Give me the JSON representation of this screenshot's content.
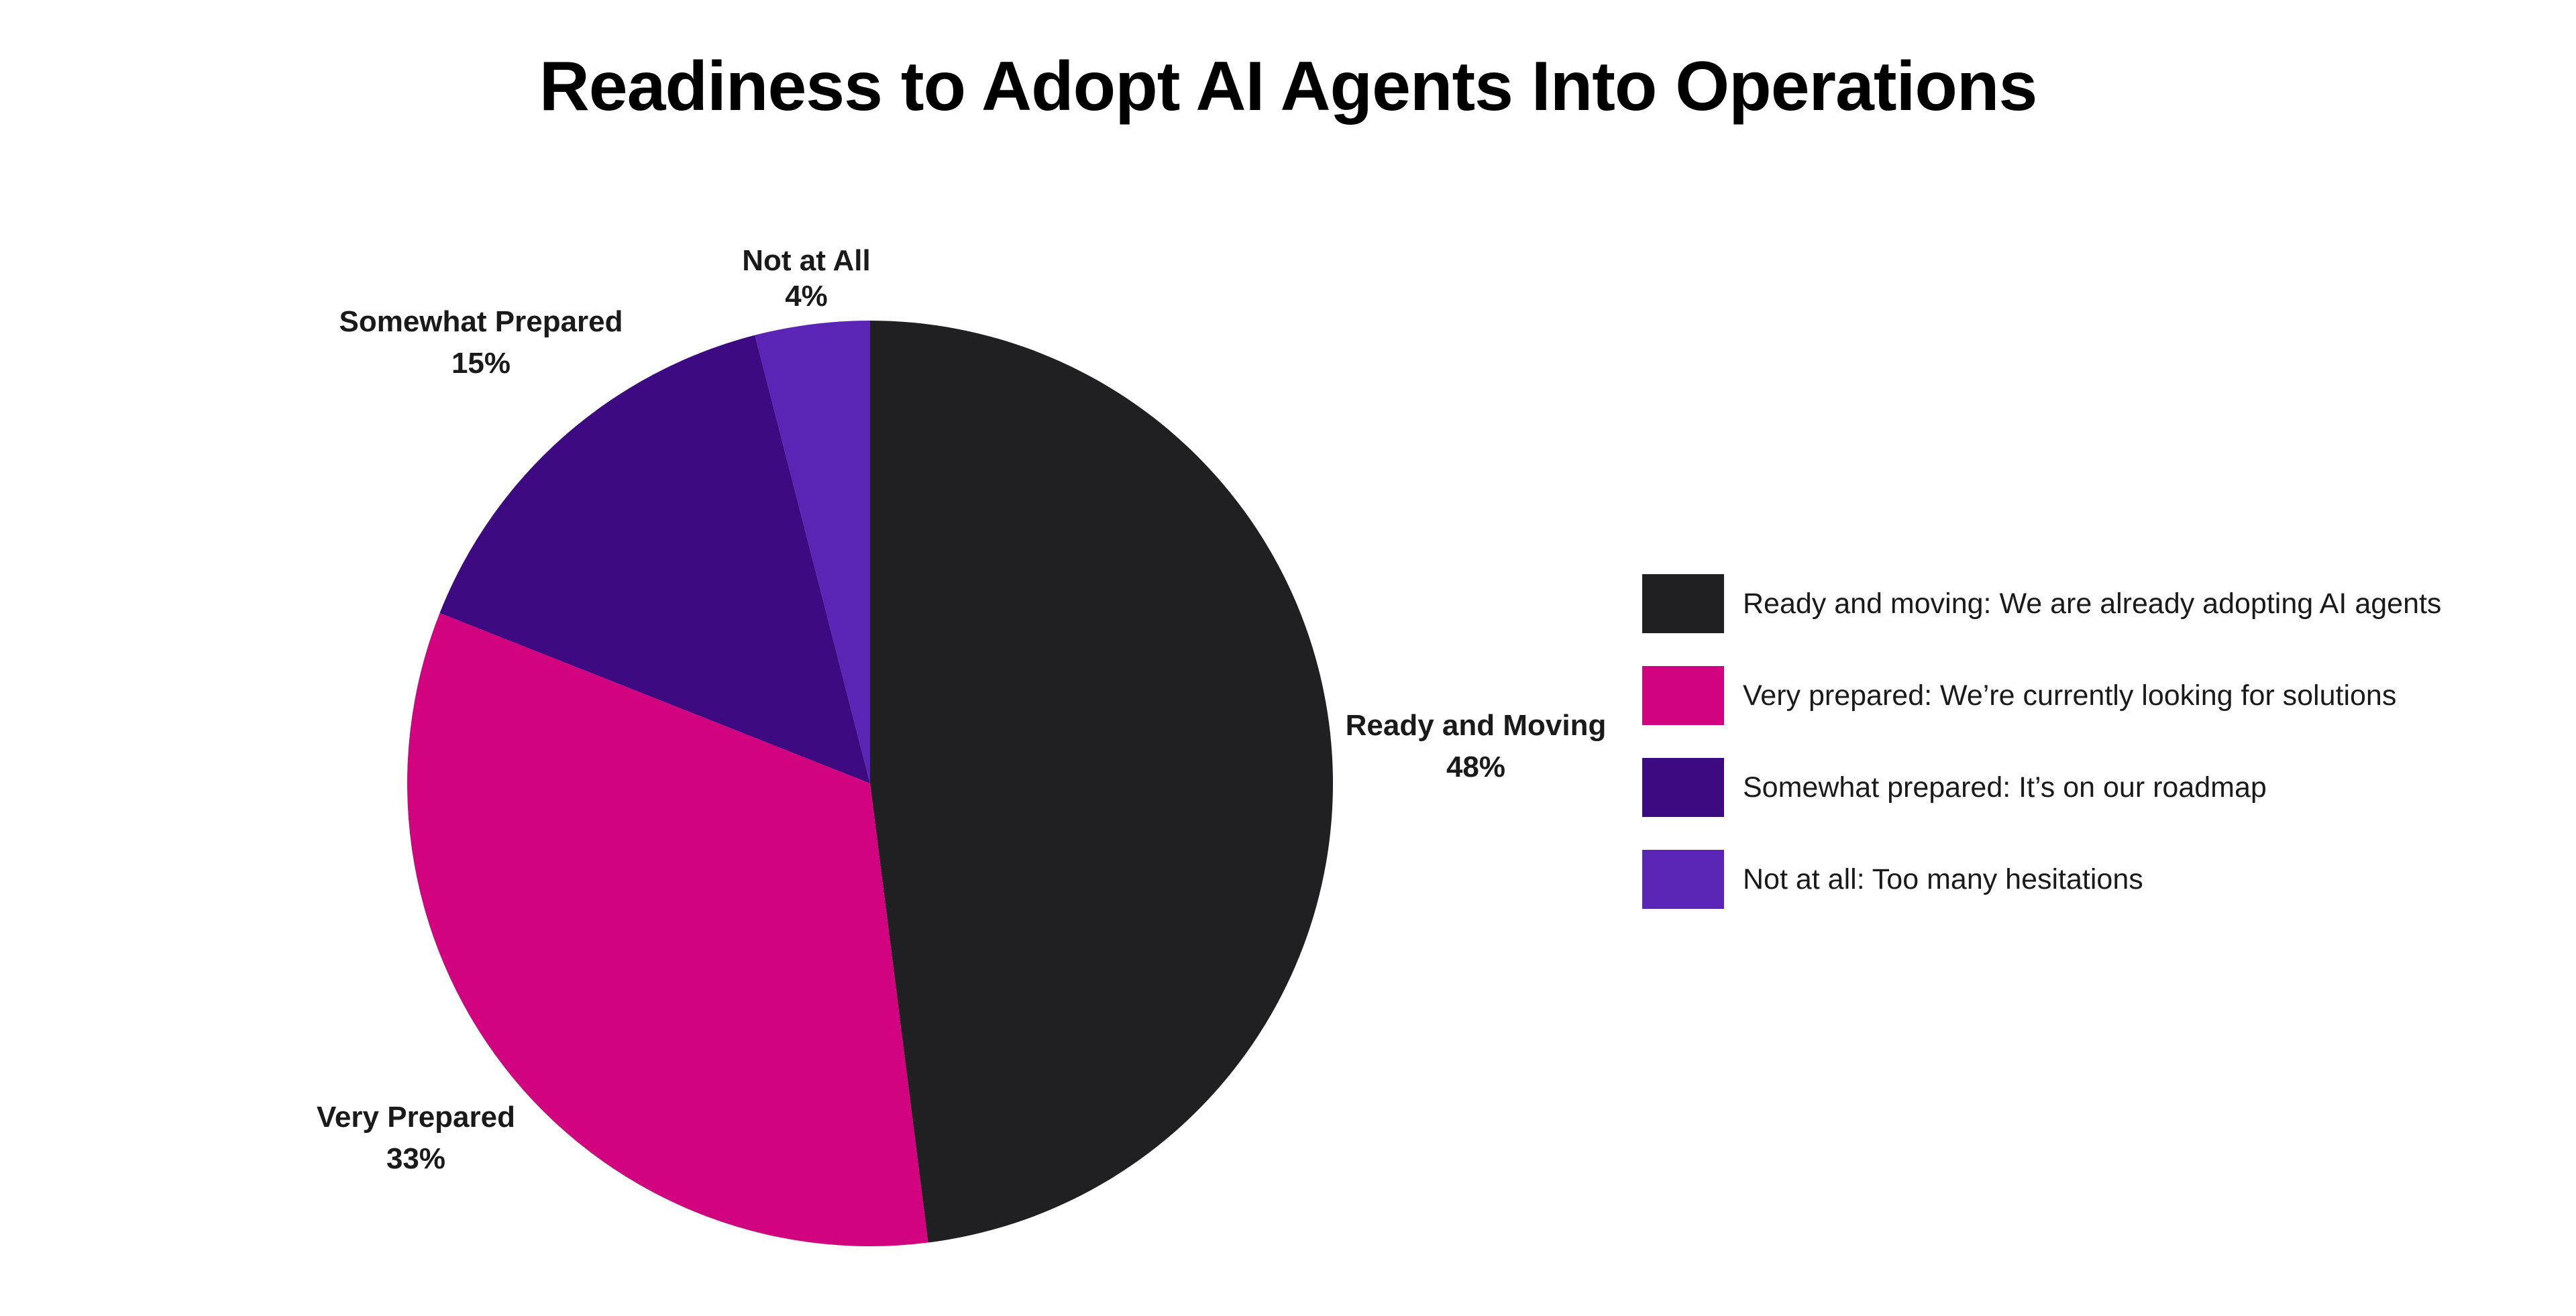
{
  "chart_data": {
    "type": "pie",
    "title": "Readiness to Adopt AI Agents Into Operations",
    "slices": [
      {
        "label": "Ready and Moving",
        "value": 48,
        "value_label": "48%",
        "color": "#201f22",
        "legend": "Ready and moving: We are already adopting AI agents"
      },
      {
        "label": "Very Prepared",
        "value": 33,
        "value_label": "33%",
        "color": "#d1037f",
        "legend": "Very prepared: We’re currently looking for solutions"
      },
      {
        "label": "Somewhat Prepared",
        "value": 15,
        "value_label": "15%",
        "color": "#3d0a82",
        "legend": "Somewhat prepared: It’s on our roadmap"
      },
      {
        "label": "Not at All",
        "value": 4,
        "value_label": "4%",
        "color": "#5a24b5",
        "legend": "Not at all: Too many hesitations"
      }
    ],
    "legend_placement": "right"
  }
}
